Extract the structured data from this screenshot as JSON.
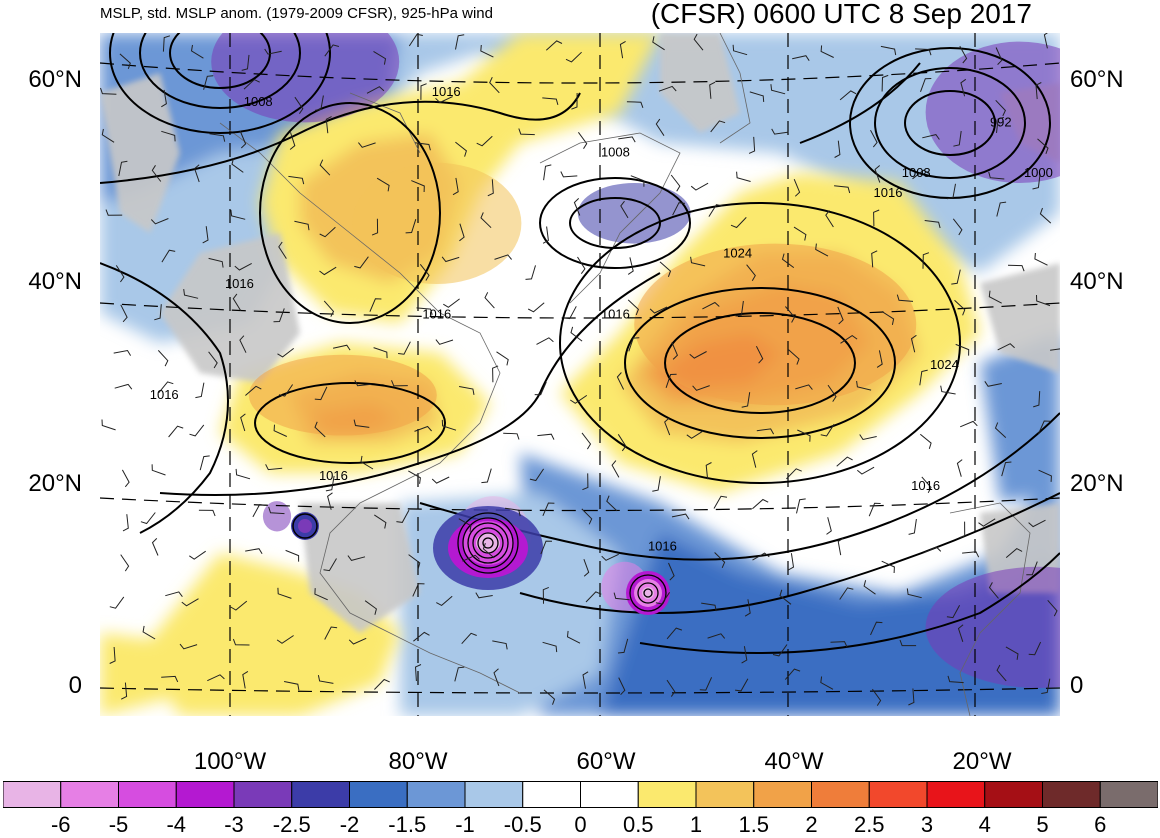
{
  "header": {
    "title_left": "MSLP, std. MSLP anom. (1979-2009 CFSR), 925-hPa wind",
    "title_right": "(CFSR) 0600 UTC 8 Sep 2017"
  },
  "chart_data": {
    "type": "heatmap",
    "lat_ticks": [
      {
        "label": "60°N",
        "value": 60
      },
      {
        "label": "40°N",
        "value": 40
      },
      {
        "label": "20°N",
        "value": 20
      },
      {
        "label": "0",
        "value": 0
      }
    ],
    "lon_ticks": [
      {
        "label": "100°W",
        "value": -100
      },
      {
        "label": "80°W",
        "value": -80
      },
      {
        "label": "60°W",
        "value": -60
      },
      {
        "label": "40°W",
        "value": -40
      },
      {
        "label": "20°W",
        "value": -20
      }
    ],
    "colorbar": {
      "labels": [
        "-6",
        "-5",
        "-4",
        "-3",
        "-2.5",
        "-2",
        "-1.5",
        "-1",
        "-0.5",
        "0",
        "0.5",
        "1",
        "1.5",
        "2",
        "2.5",
        "3",
        "4",
        "5",
        "6"
      ],
      "colors": [
        "#e8b4e6",
        "#e67fe5",
        "#d64de0",
        "#b419d1",
        "#7a3ab8",
        "#3c3ca8",
        "#3a6ec2",
        "#6c97d6",
        "#a9c8e8",
        "#ffffff",
        "#ffffff",
        "#fbe96e",
        "#f3c35a",
        "#f1a248",
        "#ef7d3a",
        "#f2482c",
        "#e8141a",
        "#a50f15",
        "#6e2a2a",
        "#7a6c6c"
      ]
    },
    "isobar_labels": [
      {
        "text": "1008",
        "lon": -97,
        "lat": 58
      },
      {
        "text": "1016",
        "lon": -77,
        "lat": 59
      },
      {
        "text": "1008",
        "lon": -59,
        "lat": 53
      },
      {
        "text": "992",
        "lon": -18,
        "lat": 56
      },
      {
        "text": "1008",
        "lon": -27,
        "lat": 51
      },
      {
        "text": "1000",
        "lon": -14,
        "lat": 51
      },
      {
        "text": "1016",
        "lon": -30,
        "lat": 49
      },
      {
        "text": "1024",
        "lon": -46,
        "lat": 43
      },
      {
        "text": "1016",
        "lon": -99,
        "lat": 40
      },
      {
        "text": "1016",
        "lon": -78,
        "lat": 37
      },
      {
        "text": "1016",
        "lon": -59,
        "lat": 37
      },
      {
        "text": "1024",
        "lon": -24,
        "lat": 32
      },
      {
        "text": "1016",
        "lon": -107,
        "lat": 29
      },
      {
        "text": "1016",
        "lon": -89,
        "lat": 21
      },
      {
        "text": "1016",
        "lon": -26,
        "lat": 20
      },
      {
        "text": "1016",
        "lon": -54,
        "lat": 14
      }
    ],
    "anomaly_regions": [
      {
        "lon": -92,
        "lat": 62,
        "rx": 10,
        "ry": 6,
        "value": -2.5
      },
      {
        "lon": -16,
        "lat": 57,
        "rx": 10,
        "ry": 7,
        "value": -2.5
      },
      {
        "lon": -57,
        "lat": 47,
        "rx": 6,
        "ry": 3,
        "value": -2
      },
      {
        "lon": -78,
        "lat": 46,
        "rx": 9,
        "ry": 6,
        "value": 1.5
      },
      {
        "lon": -42,
        "lat": 36,
        "rx": 15,
        "ry": 8,
        "value": 2
      },
      {
        "lon": -88,
        "lat": 29,
        "rx": 10,
        "ry": 4,
        "value": 2
      },
      {
        "lon": -72,
        "lat": 15,
        "rx": 4,
        "ry": 4,
        "value": -6
      },
      {
        "lon": -58,
        "lat": 10,
        "rx": 2.5,
        "ry": 2.5,
        "value": -5
      },
      {
        "lon": -95,
        "lat": 17,
        "rx": 1.5,
        "ry": 1.5,
        "value": -2.5
      },
      {
        "lon": -14,
        "lat": 6,
        "rx": 12,
        "ry": 6,
        "value": -2.5
      }
    ]
  }
}
